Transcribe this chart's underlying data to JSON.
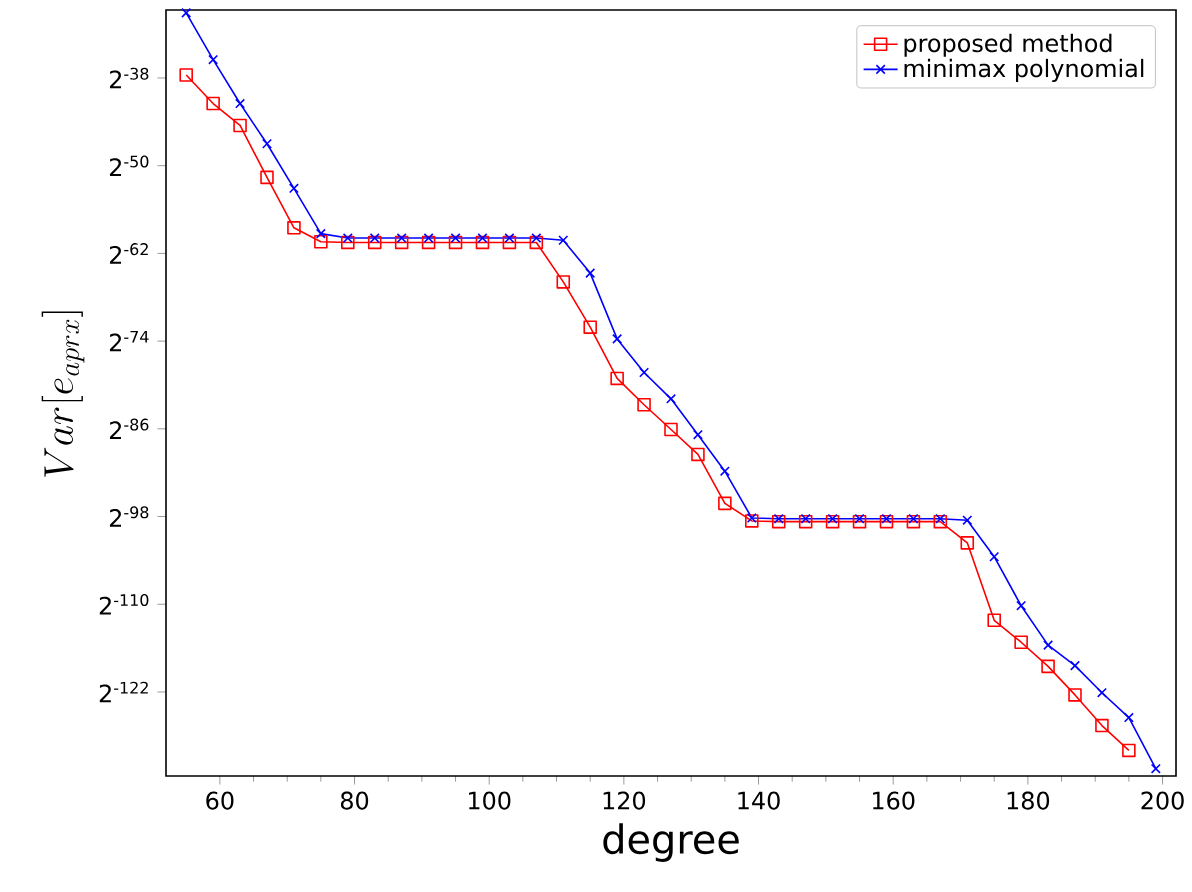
{
  "chart_data": {
    "type": "line",
    "xlabel": "degree",
    "ylabel": "Var[e_{aprx}]",
    "log": "y",
    "xlim": [
      52,
      202
    ],
    "xticks": [
      60,
      80,
      100,
      120,
      140,
      160,
      180,
      200
    ],
    "ylim": [
      6.49e-41,
      2.29e-09
    ],
    "yticks": [
      {
        "value": 3.637978807091713e-12,
        "label": "2$^{-38}$"
      },
      {
        "value": 8.881784197001252e-16,
        "label": "2$^{-50}$"
      },
      {
        "value": 2.168404344971009e-19,
        "label": "2$^{-62}$"
      },
      {
        "value": 5.293955920339377e-23,
        "label": "2$^{-74}$"
      },
      {
        "value": 1.2924697071141057e-26,
        "label": "2$^{-86}$"
      },
      {
        "value": 3.1554436208840472e-30,
        "label": "2$^{-98}$"
      },
      {
        "value": 7.703719777548943e-34,
        "label": "2$^{-110}$"
      },
      {
        "value": 1.88079096131566e-37,
        "label": "2$^{-122}$"
      }
    ],
    "legend": "top right",
    "grid": false,
    "line_style": "solid",
    "series": [
      {
        "name": "proposed method",
        "color": "#ff0000",
        "marker": "square",
        "x": [
          55,
          59,
          63,
          67,
          71,
          75,
          79,
          83,
          87,
          91,
          95,
          99,
          103,
          107,
          111,
          115,
          119,
          123,
          127,
          131,
          135,
          139,
          143,
          147,
          151,
          155,
          159,
          163,
          167,
          171,
          175,
          179,
          183,
          187,
          191,
          195
        ],
        "values": [
          4.8e-12,
          3.22e-13,
          4.02e-14,
          2.93e-16,
          2.45e-18,
          6.57e-19,
          6.13e-19,
          6.13e-19,
          6.13e-19,
          6.13e-19,
          6.13e-19,
          6.13e-19,
          6.13e-19,
          6.13e-19,
          1.45e-20,
          1.98e-22,
          1.54e-24,
          1.27e-25,
          1.21e-26,
          1.14e-27,
          1.1e-29,
          2.08e-30,
          1.94e-30,
          1.94e-30,
          1.94e-30,
          1.94e-30,
          1.94e-30,
          1.94e-30,
          1.94e-30,
          2.6e-31,
          1.68e-34,
          2.1e-35,
          2.13e-36,
          1.42e-37,
          7.76e-39,
          7.35e-40
        ]
      },
      {
        "name": "minimax polynomial",
        "color": "#0000ff",
        "marker": "cross",
        "x": [
          55,
          59,
          63,
          67,
          71,
          75,
          79,
          83,
          87,
          91,
          95,
          99,
          103,
          107,
          111,
          115,
          119,
          123,
          127,
          131,
          135,
          139,
          143,
          147,
          151,
          155,
          159,
          163,
          167,
          171,
          175,
          179,
          183,
          187,
          191,
          195,
          199
        ],
        "values": [
          1.74e-09,
          2.06e-11,
          3.22e-13,
          7.11e-15,
          1.04e-16,
          1.41e-18,
          9.3e-19,
          9.3e-19,
          9.3e-19,
          9.3e-19,
          9.3e-19,
          9.3e-19,
          9.3e-19,
          9.3e-19,
          7.55e-19,
          3.34e-20,
          6.52e-23,
          2.69e-24,
          2.22e-25,
          7.42e-27,
          2.32e-28,
          2.75e-30,
          2.56e-30,
          2.56e-30,
          2.56e-30,
          2.56e-30,
          2.56e-30,
          2.56e-30,
          2.56e-30,
          2.23e-30,
          6.97e-32,
          6.71e-34,
          1.59e-35,
          2.28e-36,
          1.75e-37,
          1.66e-38,
          1.3e-40
        ]
      }
    ]
  }
}
